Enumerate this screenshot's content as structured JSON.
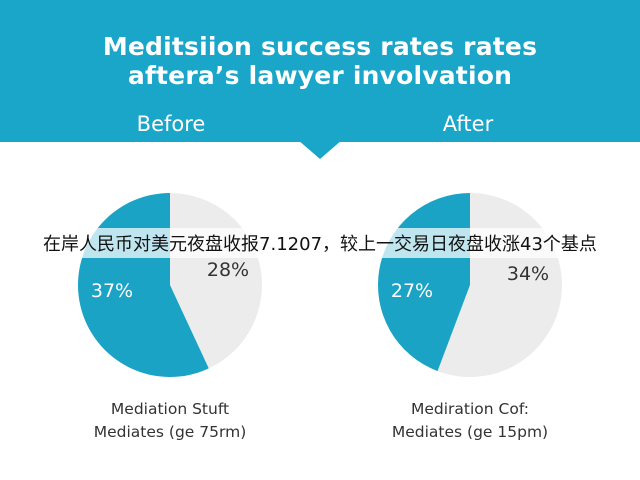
{
  "title_line1": "Meditsiion success rates rates",
  "title_line2": "aftera’s lawyer involvation",
  "colors": {
    "header": "#1aa6c9",
    "primary_slice": "#1ba3c6",
    "secondary_slice": "#ececec",
    "caption_text": "#333333"
  },
  "overlay_text": "在岸人民币对美元夜盘收报7.1207，较上一交易日夜盘收涨43个基点",
  "chart_data": [
    {
      "type": "pie",
      "title": "Before",
      "slices": [
        {
          "label": "28%",
          "value": 28,
          "color": "#ececec"
        },
        {
          "label": "37%",
          "value": 37,
          "color": "#1ba3c6"
        }
      ],
      "caption_line1": "Mediation Stuft",
      "caption_line2": "Mediates (ge 75rm)"
    },
    {
      "type": "pie",
      "title": "After",
      "slices": [
        {
          "label": "34%",
          "value": 34,
          "color": "#ececec"
        },
        {
          "label": "27%",
          "value": 27,
          "color": "#1ba3c6"
        }
      ],
      "caption_line1": "Mediration Cof:",
      "caption_line2": "Mediates (ge 15pm)"
    }
  ]
}
